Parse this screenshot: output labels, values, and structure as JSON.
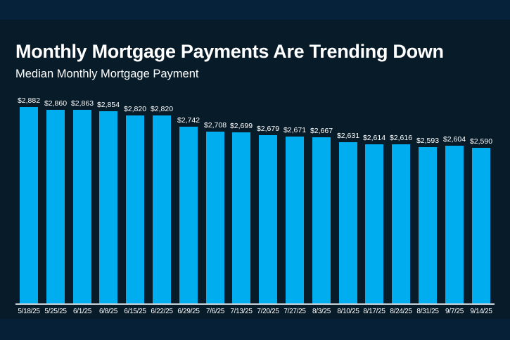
{
  "header": {
    "title": "Monthly Mortgage Payments Are Trending Down",
    "subtitle": "Median Monthly Mortgage Payment"
  },
  "colors": {
    "background": "#071b29",
    "top_band": "#06223a",
    "bar": "#00aeef",
    "text": "#ffffff",
    "axis": "#c9d3da"
  },
  "chart_data": {
    "type": "bar",
    "title": "Monthly Mortgage Payments Are Trending Down",
    "subtitle": "Median Monthly Mortgage Payment",
    "xlabel": "",
    "ylabel": "",
    "grid": false,
    "legend": null,
    "categories": [
      "5/18/25",
      "5/25/25",
      "6/1/25",
      "6/8/25",
      "6/15/25",
      "6/22/25",
      "6/29/25",
      "7/6/25",
      "7/13/25",
      "7/20/25",
      "7/27/25",
      "8/3/25",
      "8/10/25",
      "8/17/25",
      "8/24/25",
      "8/31/25",
      "9/7/25",
      "9/14/25"
    ],
    "values": [
      2882,
      2860,
      2863,
      2854,
      2820,
      2820,
      2742,
      2708,
      2699,
      2679,
      2671,
      2667,
      2631,
      2614,
      2616,
      2593,
      2604,
      2590
    ],
    "labels": [
      "$2,882",
      "$2,860",
      "$2,863",
      "$2,854",
      "$2,820",
      "$2,820",
      "$2,742",
      "$2,708",
      "$2,699",
      "$2,679",
      "$2,671",
      "$2,667",
      "$2,631",
      "$2,614",
      "$2,616",
      "$2,593",
      "$2,604",
      "$2,590"
    ]
  }
}
